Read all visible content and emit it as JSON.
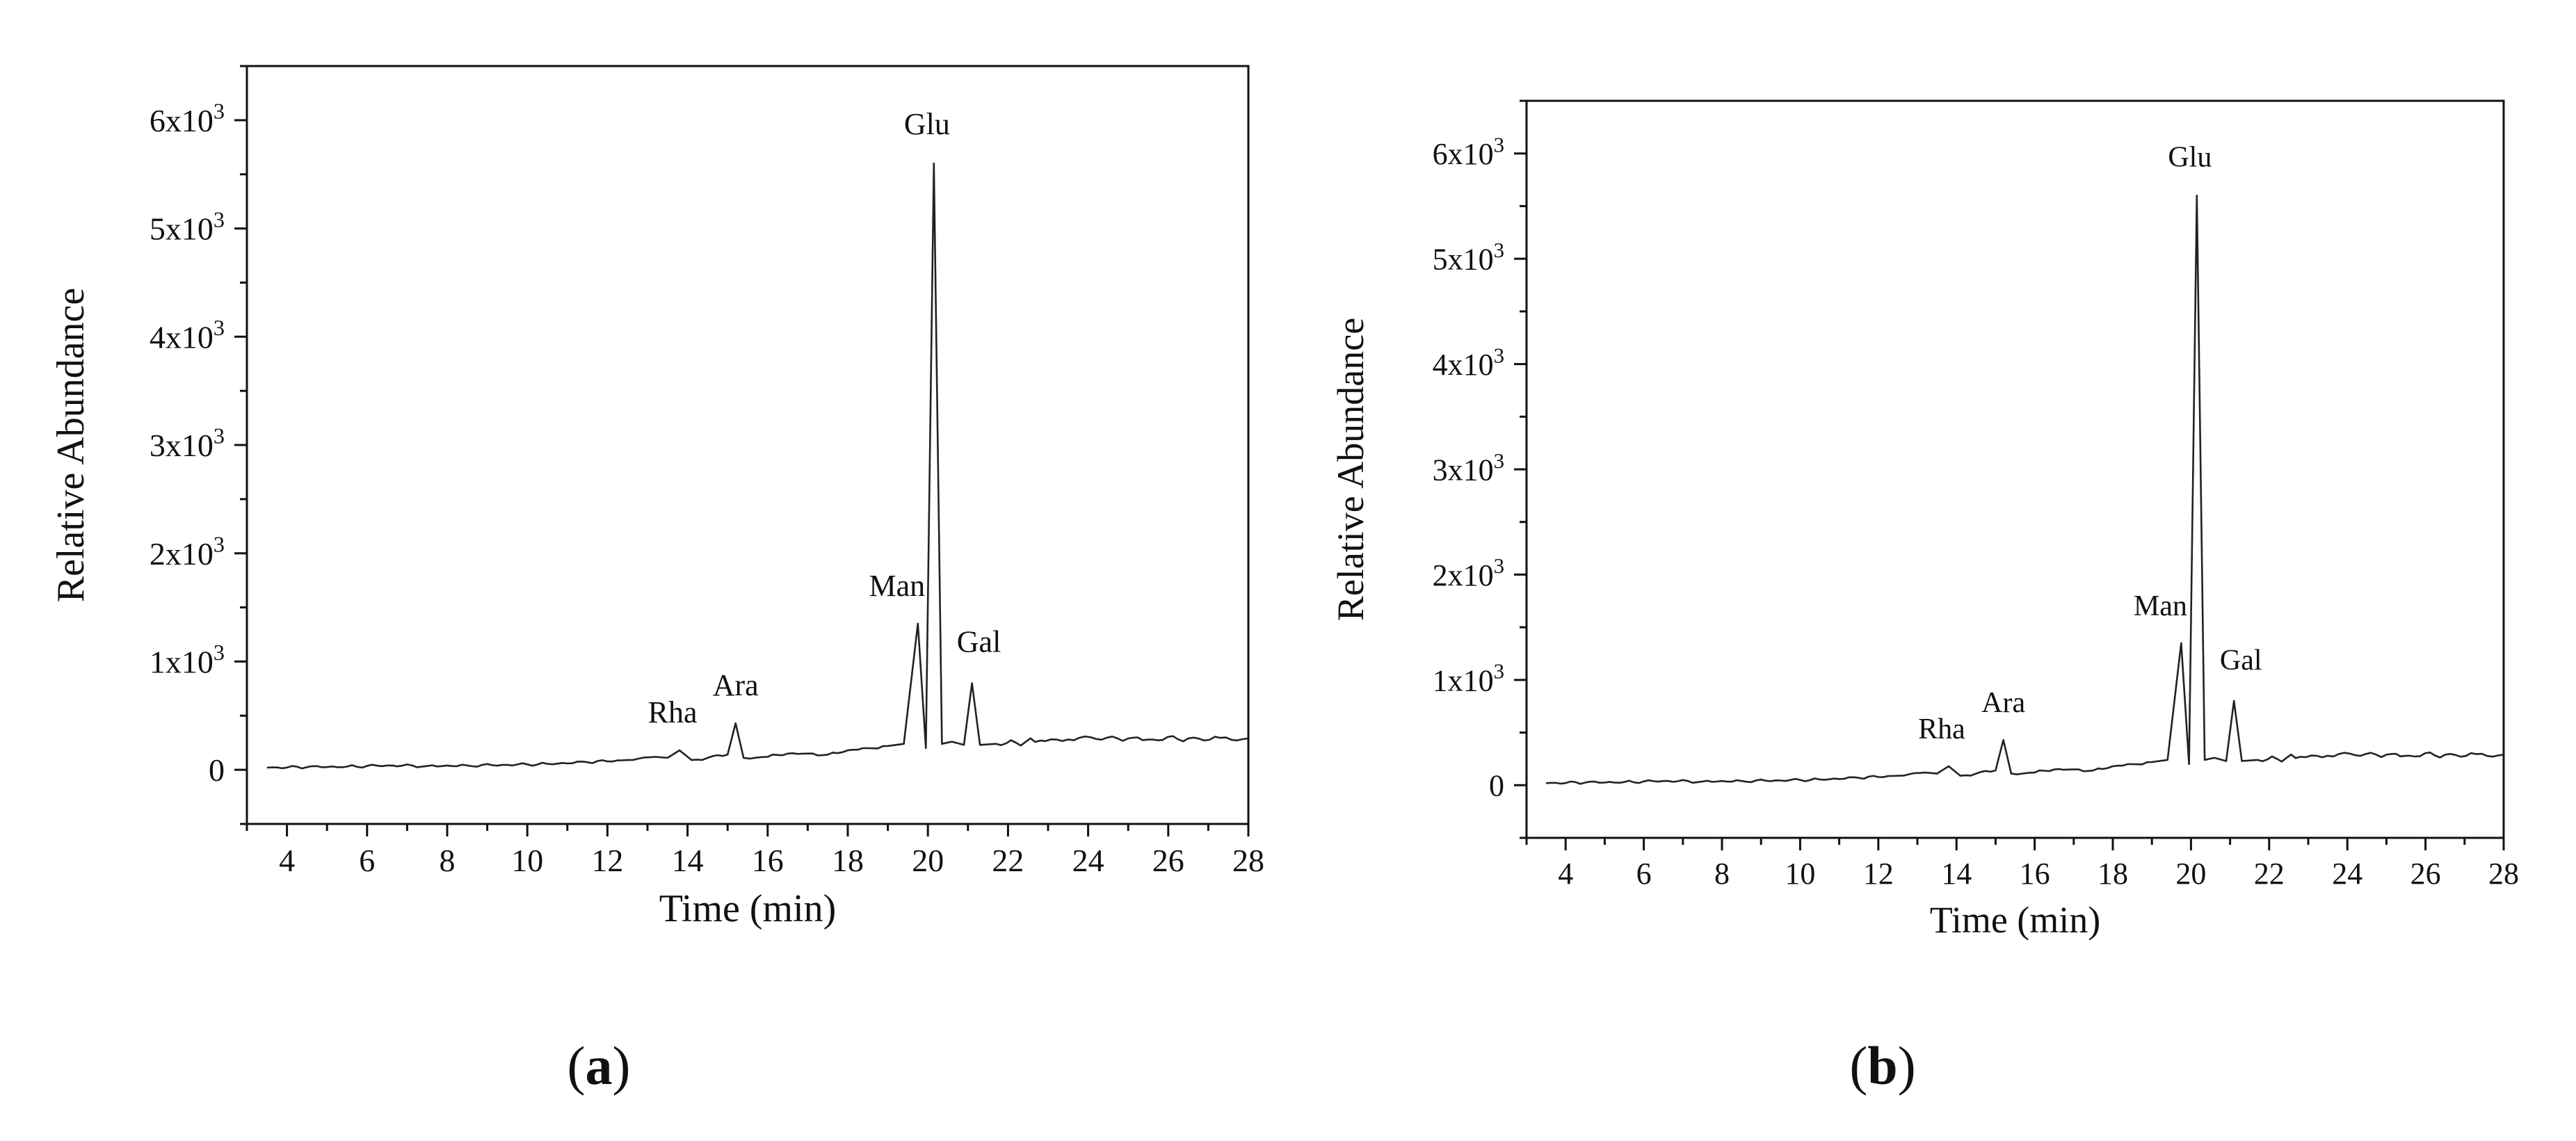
{
  "figure": {
    "panels": [
      {
        "caption_open": "(",
        "caption_letter": "a",
        "caption_close": ")"
      },
      {
        "caption_open": "(",
        "caption_letter": "b",
        "caption_close": ")"
      }
    ]
  },
  "chart_data": [
    {
      "type": "line",
      "xlabel": "Time (min)",
      "ylabel": "Relative Abundance",
      "xlim": [
        3,
        28
      ],
      "ylim": [
        -500,
        6500
      ],
      "x_ticks": [
        4,
        6,
        8,
        10,
        12,
        14,
        16,
        18,
        20,
        22,
        24,
        26,
        28
      ],
      "x_tick_labels": [
        "4",
        "6",
        "8",
        "10",
        "12",
        "14",
        "16",
        "18",
        "20",
        "22",
        "24",
        "26",
        "28"
      ],
      "y_ticks": [
        0,
        1000,
        2000,
        3000,
        4000,
        5000,
        6000
      ],
      "y_tick_labels": [
        {
          "base": "0",
          "exp": ""
        },
        {
          "base": "1x10",
          "exp": "3"
        },
        {
          "base": "2x10",
          "exp": "3"
        },
        {
          "base": "3x10",
          "exp": "3"
        },
        {
          "base": "4x10",
          "exp": "3"
        },
        {
          "base": "5x10",
          "exp": "3"
        },
        {
          "base": "6x10",
          "exp": "3"
        }
      ],
      "grid": false,
      "peaks": [
        {
          "label": "Rha",
          "x": 13.8,
          "y": 180
        },
        {
          "label": "Ara",
          "x": 15.2,
          "y": 430
        },
        {
          "label": "Man",
          "x": 19.75,
          "y": 1350
        },
        {
          "label": "Glu",
          "x": 20.15,
          "y": 5600
        },
        {
          "label": "Gal",
          "x": 21.1,
          "y": 800
        }
      ],
      "series": [
        {
          "x": [
            3.5,
            4.5,
            5.5,
            6.5,
            7.5,
            8.5,
            9.5,
            10.5,
            11.5,
            12.5,
            13.2,
            13.5,
            13.8,
            14.1,
            14.5,
            15.0,
            15.2,
            15.4,
            16.0,
            16.5,
            17.0,
            17.5,
            18.0,
            18.5,
            19.0,
            19.4,
            19.75,
            19.95,
            20.15,
            20.35,
            20.6,
            20.9,
            21.1,
            21.3,
            21.7,
            22.2,
            22.8,
            23.5,
            24.2,
            25.0,
            25.6,
            26.5,
            27.3,
            28.0
          ],
          "y": [
            20,
            25,
            30,
            40,
            35,
            40,
            45,
            55,
            70,
            90,
            120,
            110,
            180,
            90,
            110,
            140,
            430,
            110,
            120,
            150,
            150,
            140,
            180,
            200,
            220,
            240,
            1350,
            200,
            5600,
            240,
            260,
            230,
            800,
            230,
            240,
            250,
            270,
            280,
            285,
            290,
            280,
            290,
            295,
            290
          ]
        }
      ]
    },
    {
      "type": "line",
      "xlabel": "Time (min)",
      "ylabel": "Relative Abundance",
      "xlim": [
        3,
        28
      ],
      "ylim": [
        -500,
        6500
      ],
      "x_ticks": [
        4,
        6,
        8,
        10,
        12,
        14,
        16,
        18,
        20,
        22,
        24,
        26,
        28
      ],
      "x_tick_labels": [
        "4",
        "6",
        "8",
        "10",
        "12",
        "14",
        "16",
        "18",
        "20",
        "22",
        "24",
        "26",
        "28"
      ],
      "y_ticks": [
        0,
        1000,
        2000,
        3000,
        4000,
        5000,
        6000
      ],
      "y_tick_labels": [
        {
          "base": "0",
          "exp": ""
        },
        {
          "base": "1x10",
          "exp": "3"
        },
        {
          "base": "2x10",
          "exp": "3"
        },
        {
          "base": "3x10",
          "exp": "3"
        },
        {
          "base": "4x10",
          "exp": "3"
        },
        {
          "base": "5x10",
          "exp": "3"
        },
        {
          "base": "6x10",
          "exp": "3"
        }
      ],
      "grid": false,
      "peaks": [
        {
          "label": "Rha",
          "x": 13.8,
          "y": 180
        },
        {
          "label": "Ara",
          "x": 15.2,
          "y": 430
        },
        {
          "label": "Man",
          "x": 19.75,
          "y": 1350
        },
        {
          "label": "Glu",
          "x": 20.15,
          "y": 5600
        },
        {
          "label": "Gal",
          "x": 21.1,
          "y": 800
        }
      ],
      "series": [
        {
          "x": [
            3.5,
            4.5,
            5.5,
            6.5,
            7.5,
            8.5,
            9.5,
            10.5,
            11.5,
            12.5,
            13.2,
            13.5,
            13.8,
            14.1,
            14.5,
            15.0,
            15.2,
            15.4,
            16.0,
            16.5,
            17.0,
            17.5,
            18.0,
            18.5,
            19.0,
            19.4,
            19.75,
            19.95,
            20.15,
            20.35,
            20.6,
            20.9,
            21.1,
            21.3,
            21.7,
            22.2,
            22.8,
            23.5,
            24.2,
            25.0,
            25.6,
            26.5,
            27.3,
            28.0
          ],
          "y": [
            20,
            25,
            30,
            40,
            35,
            40,
            45,
            55,
            70,
            90,
            120,
            110,
            180,
            90,
            110,
            140,
            430,
            110,
            120,
            150,
            150,
            140,
            180,
            200,
            220,
            240,
            1350,
            200,
            5600,
            240,
            260,
            230,
            800,
            230,
            240,
            250,
            270,
            280,
            285,
            290,
            280,
            290,
            295,
            290
          ]
        }
      ]
    }
  ]
}
